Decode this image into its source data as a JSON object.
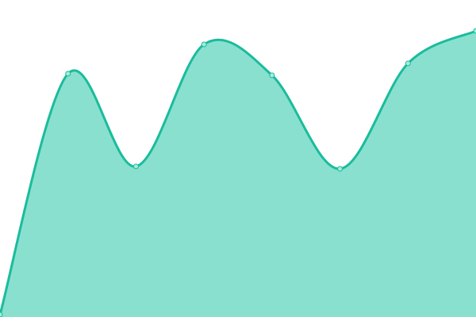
{
  "chart_data": {
    "type": "area",
    "title": "",
    "xlabel": "",
    "ylabel": "",
    "x": [
      0,
      1,
      2,
      3,
      4,
      5,
      6,
      7
    ],
    "series": [
      {
        "values": [
          3,
          307,
          190,
          344,
          305,
          187,
          320,
          361
        ]
      }
    ],
    "xlim": [
      0,
      7
    ],
    "ylim": [
      0,
      400
    ],
    "grid": false,
    "axes_visible": false,
    "curve": "smooth",
    "colors": {
      "line": "#1abc9c",
      "fill": "#89e0cf",
      "marker_fill": "#a8eadc"
    }
  }
}
